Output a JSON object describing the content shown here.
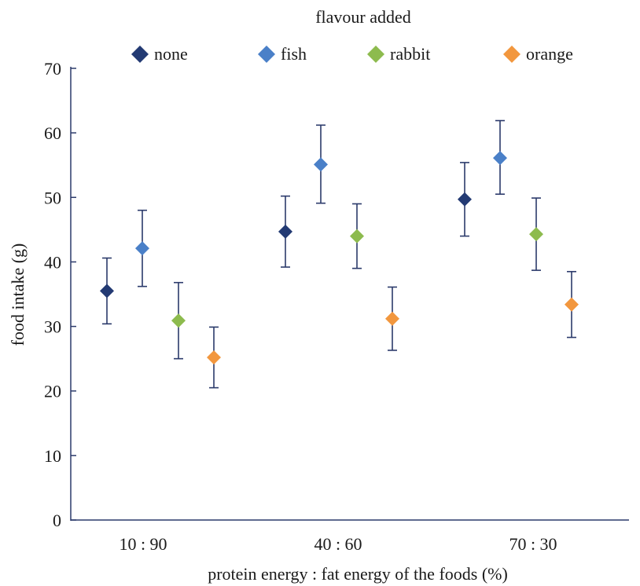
{
  "chart_data": {
    "type": "scatter",
    "title": "",
    "legend_title": "flavour added",
    "legend_position": "top",
    "xlabel": "protein energy : fat energy of the foods  (%)",
    "ylabel": "food intake (g)",
    "ylim": [
      0,
      70
    ],
    "yticks": [
      0,
      10,
      20,
      30,
      40,
      50,
      60,
      70
    ],
    "grid": false,
    "error_bars": true,
    "categories": [
      "10 : 90",
      "40 : 60",
      "70 : 30"
    ],
    "series": [
      {
        "name": "none",
        "color": "#233a73",
        "values": [
          35.5,
          44.7,
          49.7
        ],
        "lower": [
          30.4,
          39.2,
          44.0
        ],
        "upper": [
          40.6,
          50.2,
          55.4
        ]
      },
      {
        "name": "fish",
        "color": "#4a80c8",
        "values": [
          42.1,
          55.1,
          56.1
        ],
        "lower": [
          36.2,
          49.1,
          50.5
        ],
        "upper": [
          48.0,
          61.2,
          61.9
        ]
      },
      {
        "name": "rabbit",
        "color": "#8dbb4e",
        "values": [
          30.9,
          44.0,
          44.3
        ],
        "lower": [
          25.0,
          39.0,
          38.7
        ],
        "upper": [
          36.8,
          49.0,
          49.9
        ]
      },
      {
        "name": "orange",
        "color": "#f2973e",
        "values": [
          25.2,
          31.2,
          33.4
        ],
        "lower": [
          20.5,
          26.3,
          28.3
        ],
        "upper": [
          29.9,
          36.1,
          38.5
        ]
      }
    ],
    "error_bar_color": "#2b3a6b"
  }
}
